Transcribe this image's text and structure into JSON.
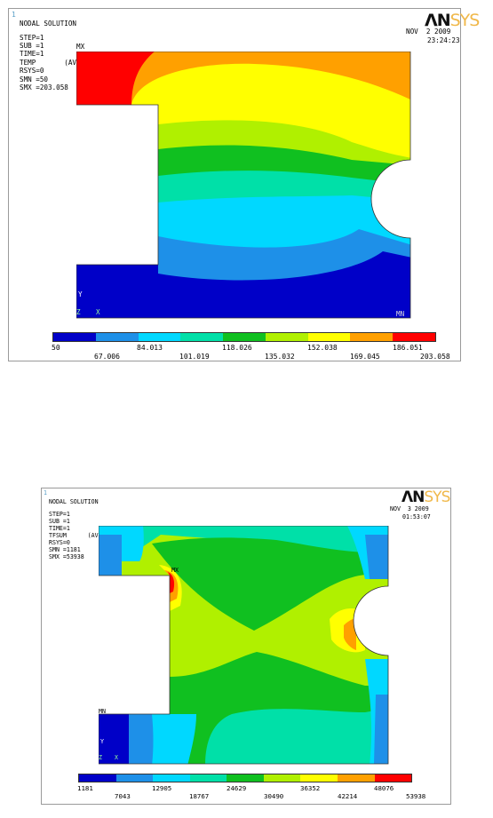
{
  "panels": [
    {
      "window_number": "1",
      "title": "NODAL SOLUTION",
      "info": [
        "STEP=1",
        "SUB =1",
        "TIME=1",
        "TEMP       (AVG)",
        "RSYS=0",
        "SMN =50",
        "SMX =203.058"
      ],
      "max_marker": "MX",
      "min_marker": "MN",
      "axis_y": "Y",
      "axis_z": "Z",
      "axis_x": "X",
      "logo_main": "ΛN",
      "logo_sys": "SYS",
      "date": "NOV  2 2009",
      "time": "23:24:23",
      "legend_top": [
        "50",
        "84.013",
        "118.026",
        "152.038",
        "186.051"
      ],
      "legend_bottom": [
        "67.006",
        "101.019",
        "135.032",
        "169.045",
        "203.058"
      ],
      "colors": [
        "#0000c8",
        "#1e90e8",
        "#00d8ff",
        "#00e0a8",
        "#10c020",
        "#b0f000",
        "#ffff00",
        "#ffa000",
        "#ff0000"
      ]
    },
    {
      "window_number": "1",
      "title": "NODAL SOLUTION",
      "info": [
        "STEP=1",
        "SUB =1",
        "TIME=1",
        "TFSUM      (AVG)",
        "RSYS=0",
        "SMN =1181",
        "SMX =53938"
      ],
      "max_marker": "MX",
      "min_marker": "MN",
      "axis_y": "Y",
      "axis_z": "Z",
      "axis_x": "X",
      "logo_main": "ΛN",
      "logo_sys": "SYS",
      "date": "NOV  3 2009",
      "time": "01:53:07",
      "legend_top": [
        "1181",
        "12905",
        "24629",
        "36352",
        "48076"
      ],
      "legend_bottom": [
        "7043",
        "18767",
        "30490",
        "42214",
        "53938"
      ],
      "colors": [
        "#0000c8",
        "#1e90e8",
        "#00d8ff",
        "#00e0a8",
        "#10c020",
        "#b0f000",
        "#ffff00",
        "#ffa000",
        "#ff0000"
      ]
    }
  ]
}
